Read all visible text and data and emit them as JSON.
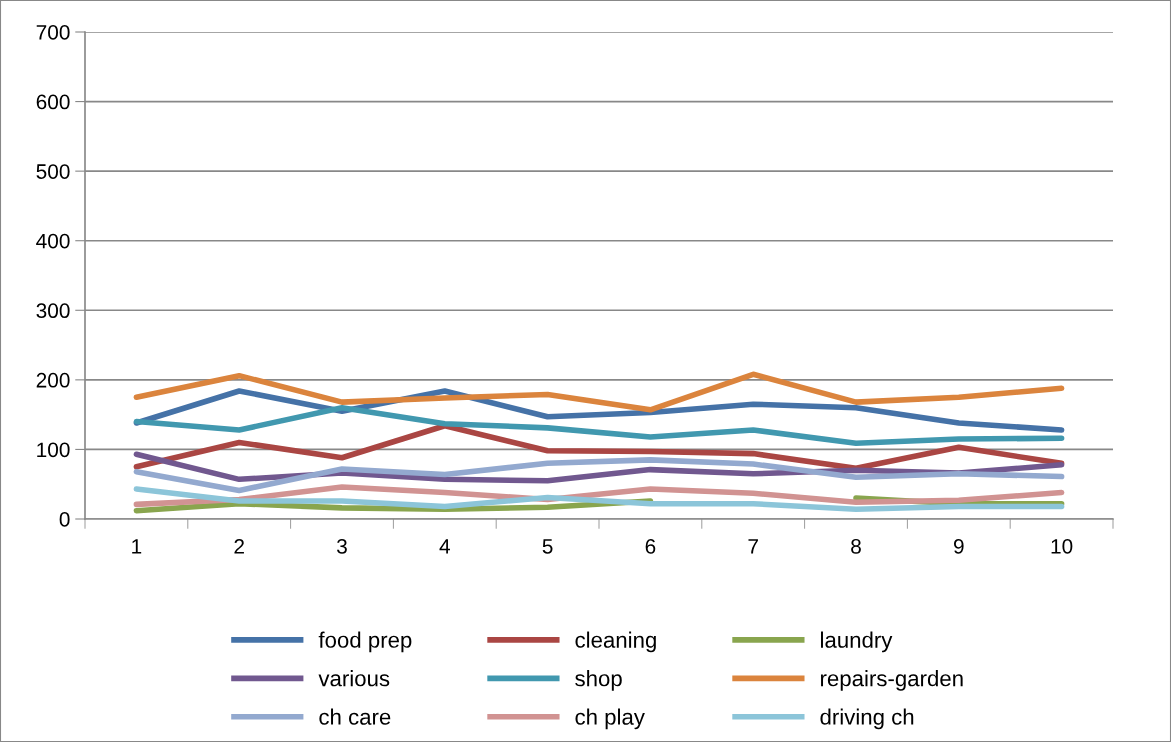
{
  "chart_data": {
    "type": "line",
    "categories": [
      "1",
      "2",
      "3",
      "4",
      "5",
      "6",
      "7",
      "8",
      "9",
      "10"
    ],
    "ylim": [
      0,
      700
    ],
    "yticks": [
      0,
      100,
      200,
      300,
      400,
      500,
      600,
      700
    ],
    "grid": "y",
    "legend": "bottom",
    "marker": "none",
    "line_style": "solid",
    "series": [
      {
        "name": "food prep",
        "color": "#4572a7",
        "values": [
          138,
          184,
          155,
          184,
          147,
          153,
          165,
          160,
          138,
          128
        ]
      },
      {
        "name": "cleaning",
        "color": "#aa4643",
        "values": [
          75,
          110,
          88,
          134,
          98,
          97,
          94,
          73,
          103,
          80
        ]
      },
      {
        "name": "laundry",
        "color": "#89a54e",
        "values": [
          12,
          22,
          16,
          14,
          17,
          26,
          null,
          30,
          22,
          22
        ]
      },
      {
        "name": "various",
        "color": "#71588f",
        "values": [
          93,
          57,
          66,
          57,
          55,
          71,
          65,
          70,
          66,
          78
        ]
      },
      {
        "name": "shop",
        "color": "#4198af",
        "values": [
          140,
          128,
          160,
          137,
          131,
          118,
          128,
          109,
          115,
          116
        ]
      },
      {
        "name": "repairs-garden",
        "color": "#db843d",
        "values": [
          175,
          206,
          168,
          174,
          179,
          157,
          208,
          168,
          175,
          188
        ]
      },
      {
        "name": "ch care",
        "color": "#93a9cf",
        "values": [
          68,
          41,
          72,
          64,
          80,
          85,
          79,
          60,
          65,
          61
        ]
      },
      {
        "name": "ch play",
        "color": "#d19392",
        "values": [
          21,
          28,
          46,
          38,
          28,
          43,
          37,
          24,
          27,
          38
        ]
      },
      {
        "name": "driving ch",
        "color": "#8cc5d9",
        "values": [
          43,
          26,
          26,
          18,
          31,
          22,
          22,
          14,
          18,
          18
        ]
      }
    ]
  }
}
